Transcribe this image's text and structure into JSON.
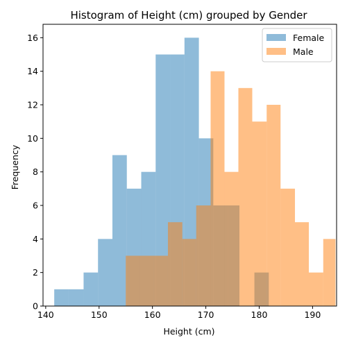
{
  "chart_data": {
    "type": "histogram",
    "title": "Histogram of Height (cm) grouped by Gender",
    "xlabel": "Height (cm)",
    "ylabel": "Frequency",
    "xlim": [
      139.5,
      194.5
    ],
    "ylim": [
      0,
      16.8
    ],
    "xticks": [
      140,
      150,
      160,
      170,
      180,
      190
    ],
    "yticks": [
      0,
      2,
      4,
      6,
      8,
      10,
      12,
      14,
      16
    ],
    "grid": false,
    "legend_position": "top-right",
    "series": [
      {
        "name": "Female",
        "color": "#1f77b4",
        "alpha": 0.5,
        "bins": [
          {
            "x0": 141.6,
            "x1": 144.3,
            "count": 1
          },
          {
            "x0": 144.3,
            "x1": 147.1,
            "count": 1
          },
          {
            "x0": 147.1,
            "x1": 149.8,
            "count": 2
          },
          {
            "x0": 149.8,
            "x1": 152.5,
            "count": 4
          },
          {
            "x0": 152.5,
            "x1": 155.2,
            "count": 9
          },
          {
            "x0": 155.2,
            "x1": 157.9,
            "count": 7
          },
          {
            "x0": 157.9,
            "x1": 160.6,
            "count": 8
          },
          {
            "x0": 160.6,
            "x1": 163.3,
            "count": 15
          },
          {
            "x0": 163.3,
            "x1": 166.0,
            "count": 15
          },
          {
            "x0": 166.0,
            "x1": 168.7,
            "count": 16
          },
          {
            "x0": 168.7,
            "x1": 171.4,
            "count": 10
          },
          {
            "x0": 171.4,
            "x1": 174.1,
            "count": 6
          },
          {
            "x0": 174.1,
            "x1": 176.3,
            "count": 6
          },
          {
            "x0": 176.3,
            "x1": 179.1,
            "count": 0
          },
          {
            "x0": 179.1,
            "x1": 181.8,
            "count": 2
          }
        ]
      },
      {
        "name": "Male",
        "color": "#ff7f0e",
        "alpha": 0.5,
        "bins": [
          {
            "x0": 155.0,
            "x1": 157.7,
            "count": 3
          },
          {
            "x0": 157.7,
            "x1": 160.3,
            "count": 3
          },
          {
            "x0": 160.3,
            "x1": 162.9,
            "count": 3
          },
          {
            "x0": 162.9,
            "x1": 165.6,
            "count": 5
          },
          {
            "x0": 165.6,
            "x1": 168.2,
            "count": 4
          },
          {
            "x0": 168.2,
            "x1": 170.9,
            "count": 6
          },
          {
            "x0": 170.9,
            "x1": 173.5,
            "count": 14
          },
          {
            "x0": 173.5,
            "x1": 176.1,
            "count": 8
          },
          {
            "x0": 176.1,
            "x1": 178.7,
            "count": 13
          },
          {
            "x0": 178.7,
            "x1": 181.4,
            "count": 11
          },
          {
            "x0": 181.4,
            "x1": 184.0,
            "count": 12
          },
          {
            "x0": 184.0,
            "x1": 186.7,
            "count": 7
          },
          {
            "x0": 186.7,
            "x1": 189.3,
            "count": 5
          },
          {
            "x0": 189.3,
            "x1": 192.0,
            "count": 2
          },
          {
            "x0": 192.0,
            "x1": 194.3,
            "count": 4
          }
        ]
      }
    ]
  }
}
